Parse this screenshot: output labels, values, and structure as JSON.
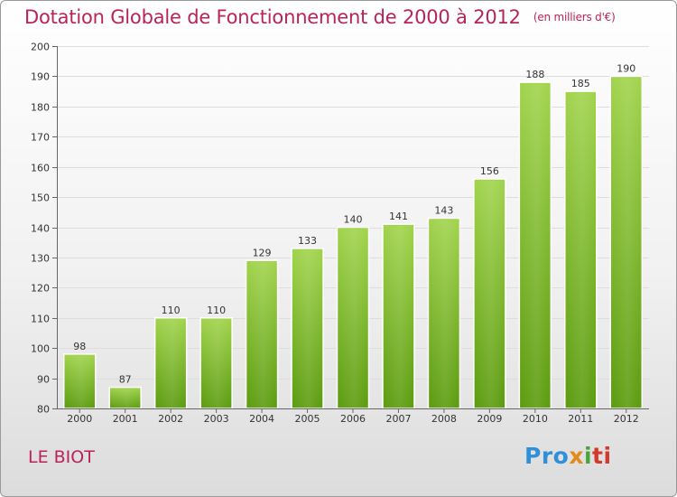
{
  "title": "Dotation Globale de Fonctionnement de 2000 à 2012",
  "unit_note": "(en milliers d'€)",
  "commune": "LE BIOT",
  "logo": {
    "p1": "Pro",
    "p2": "x",
    "p3": "i",
    "p4": "ti"
  },
  "colors": {
    "title": "#b8235a",
    "bar_top": "#9fd24c",
    "bar_bottom": "#5f9e12"
  },
  "chart_data": {
    "type": "bar",
    "title": "Dotation Globale de Fonctionnement de 2000 à 2012",
    "subtitle": "(en milliers d'€)",
    "categories": [
      "2000",
      "2001",
      "2002",
      "2003",
      "2004",
      "2005",
      "2006",
      "2007",
      "2008",
      "2009",
      "2010",
      "2011",
      "2012"
    ],
    "values": [
      98,
      87,
      110,
      110,
      129,
      133,
      140,
      141,
      143,
      156,
      188,
      185,
      190
    ],
    "ylim": [
      80,
      200
    ],
    "yticks": [
      80,
      90,
      100,
      110,
      120,
      130,
      140,
      150,
      160,
      170,
      180,
      190,
      200
    ],
    "grid": true,
    "xlabel": "",
    "ylabel": ""
  }
}
